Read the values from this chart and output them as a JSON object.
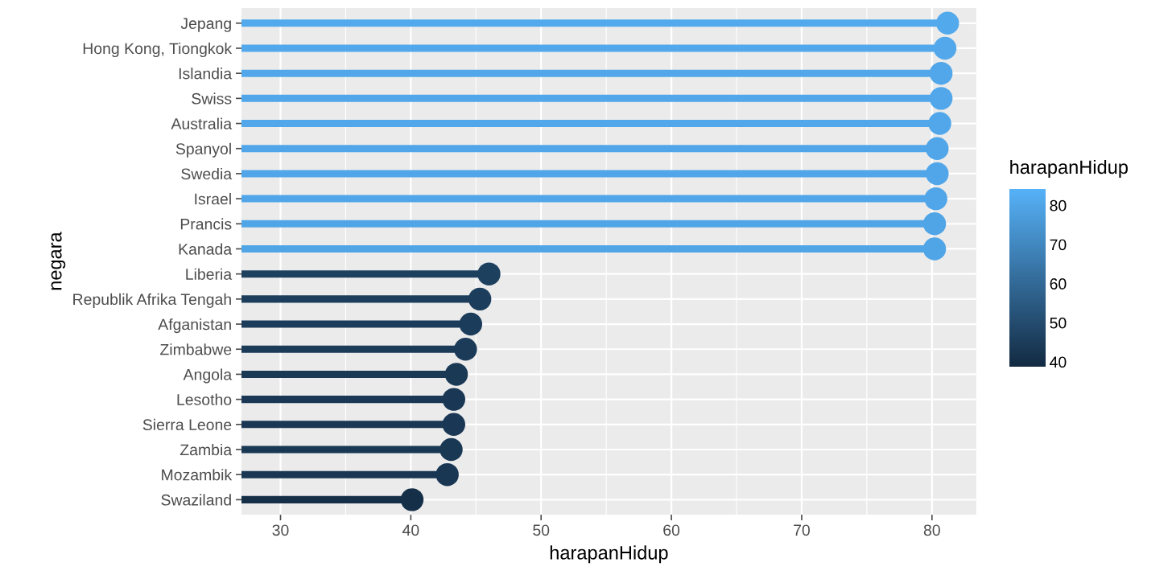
{
  "chart_data": {
    "type": "lollipop",
    "orientation": "horizontal",
    "xlabel": "harapanHidup",
    "ylabel": "negara",
    "clabel": "harapanHidup",
    "categories": [
      "Jepang",
      "Hong Kong, Tiongkok",
      "Islandia",
      "Swiss",
      "Australia",
      "Spanyol",
      "Swedia",
      "Israel",
      "Prancis",
      "Kanada",
      "Liberia",
      "Republik Afrika Tengah",
      "Afganistan",
      "Zimbabwe",
      "Angola",
      "Lesotho",
      "Sierra Leone",
      "Zambia",
      "Mozambik",
      "Swaziland"
    ],
    "values": [
      81.2,
      81.0,
      80.7,
      80.7,
      80.6,
      80.4,
      80.4,
      80.3,
      80.2,
      80.2,
      46.0,
      45.3,
      44.6,
      44.2,
      43.5,
      43.3,
      43.3,
      43.1,
      42.8,
      40.1
    ],
    "cvalues": [
      81.2,
      81.0,
      80.7,
      80.7,
      80.6,
      80.4,
      80.4,
      80.3,
      80.2,
      80.2,
      46.0,
      45.3,
      44.6,
      44.2,
      43.5,
      43.3,
      43.3,
      43.1,
      42.8,
      40.1
    ],
    "xlim": [
      27.0,
      83.4
    ],
    "xticks": [
      30,
      40,
      50,
      60,
      70,
      80
    ],
    "clim": [
      38.8,
      84.1
    ],
    "cticks": [
      40,
      50,
      60,
      70,
      80
    ],
    "grid": true,
    "marker": "circle",
    "legend": false
  }
}
